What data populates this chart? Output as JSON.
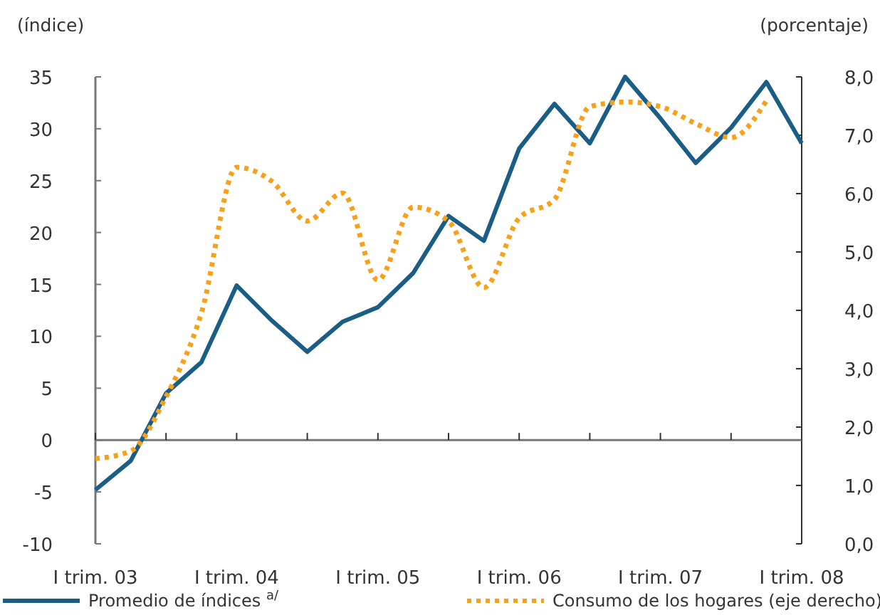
{
  "chart_data": {
    "type": "line",
    "ylabel": "(índice)",
    "y2label": "(porcentaje)",
    "categories": [
      "I trim. 03",
      null,
      null,
      null,
      "I trim. 04",
      null,
      null,
      null,
      "I trim. 05",
      null,
      null,
      null,
      "I trim. 06",
      null,
      null,
      null,
      "I trim. 07",
      null,
      null,
      null,
      "I trim. 08"
    ],
    "series": [
      {
        "name": "Promedio de índices $^{a/}$",
        "color": "#1a5e86",
        "line_style": "solid",
        "values": [
          -4.8,
          -2.0,
          4.5,
          7.5,
          14.9,
          11.5,
          8.5,
          11.4,
          12.8,
          16.1,
          21.6,
          19.2,
          28.1,
          32.4,
          28.6,
          35.0,
          31.0,
          26.7,
          30.1,
          34.5,
          28.6
        ]
      },
      {
        "name": "Consumo de los hogares (eje derecho)",
        "color": "#f7a11a",
        "axis": "y2",
        "line_style": "dotted",
        "values": [
          1.46,
          1.59,
          2.52,
          3.95,
          6.45,
          6.21,
          5.53,
          6.01,
          4.52,
          5.77,
          5.53,
          4.39,
          5.58,
          5.9,
          7.49,
          7.57,
          7.49,
          7.2,
          6.96,
          7.59,
          null
        ]
      }
    ],
    "ylim": [
      -10,
      35
    ],
    "yticks": [
      -10,
      -5,
      0,
      5,
      10,
      15,
      20,
      25,
      30,
      35
    ],
    "y2lim": [
      0,
      8
    ],
    "y2ticks": [
      {
        "value": 0,
        "label": "0,0"
      },
      {
        "value": 1,
        "label": "1,0"
      },
      {
        "value": 2,
        "label": "2,0"
      },
      {
        "value": 3,
        "label": "3,0"
      },
      {
        "value": 4,
        "label": "4,0"
      },
      {
        "value": 5,
        "label": "5,0"
      },
      {
        "value": 6,
        "label": "6,0"
      },
      {
        "value": 7,
        "label": "7,0"
      },
      {
        "value": 8,
        "label": "8,0"
      }
    ],
    "ref_lines": [
      {
        "axis": "y",
        "value": 0,
        "color": "#777777"
      }
    ],
    "grid": false,
    "legend": "bottom",
    "marker": "none"
  }
}
